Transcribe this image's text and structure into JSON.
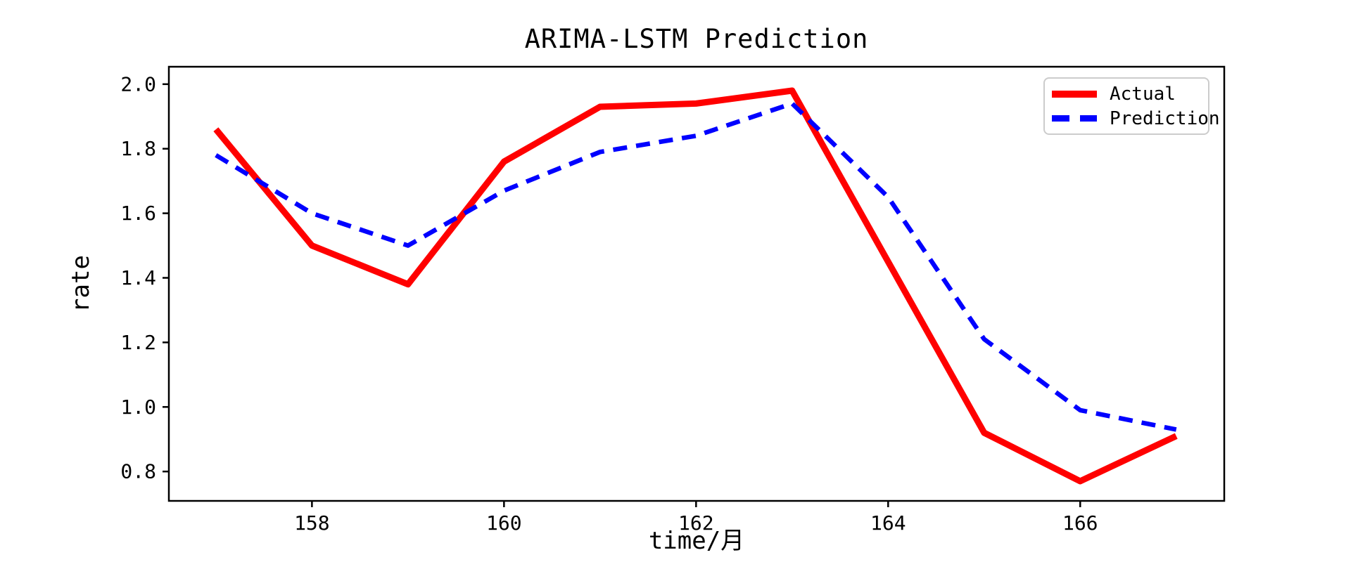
{
  "chart_data": {
    "type": "line",
    "title": "ARIMA-LSTM Prediction",
    "xlabel": "time/月",
    "ylabel": "rate",
    "x": [
      157,
      158,
      159,
      160,
      161,
      162,
      163,
      164,
      165,
      166,
      167
    ],
    "series": [
      {
        "name": "Actual",
        "color": "#ff0000",
        "style": "solid",
        "line_width": 9,
        "values": [
          1.86,
          1.5,
          1.38,
          1.76,
          1.93,
          1.94,
          1.98,
          1.45,
          0.92,
          0.77,
          0.91
        ]
      },
      {
        "name": "Prediction",
        "color": "#0000ff",
        "style": "dashed",
        "line_width": 6.5,
        "values": [
          1.78,
          1.6,
          1.5,
          1.67,
          1.79,
          1.84,
          1.94,
          1.65,
          1.21,
          0.99,
          0.93
        ]
      }
    ],
    "xticks": [
      158,
      160,
      162,
      164,
      166
    ],
    "yticks": [
      0.8,
      1.0,
      1.2,
      1.4,
      1.6,
      1.8,
      2.0
    ],
    "xlim": [
      156.51,
      167.5
    ],
    "ylim": [
      0.709,
      2.054
    ],
    "grid": false,
    "legend_position": "upper right",
    "axis_color": "#000000",
    "legend_border_color": "#cccccc"
  }
}
